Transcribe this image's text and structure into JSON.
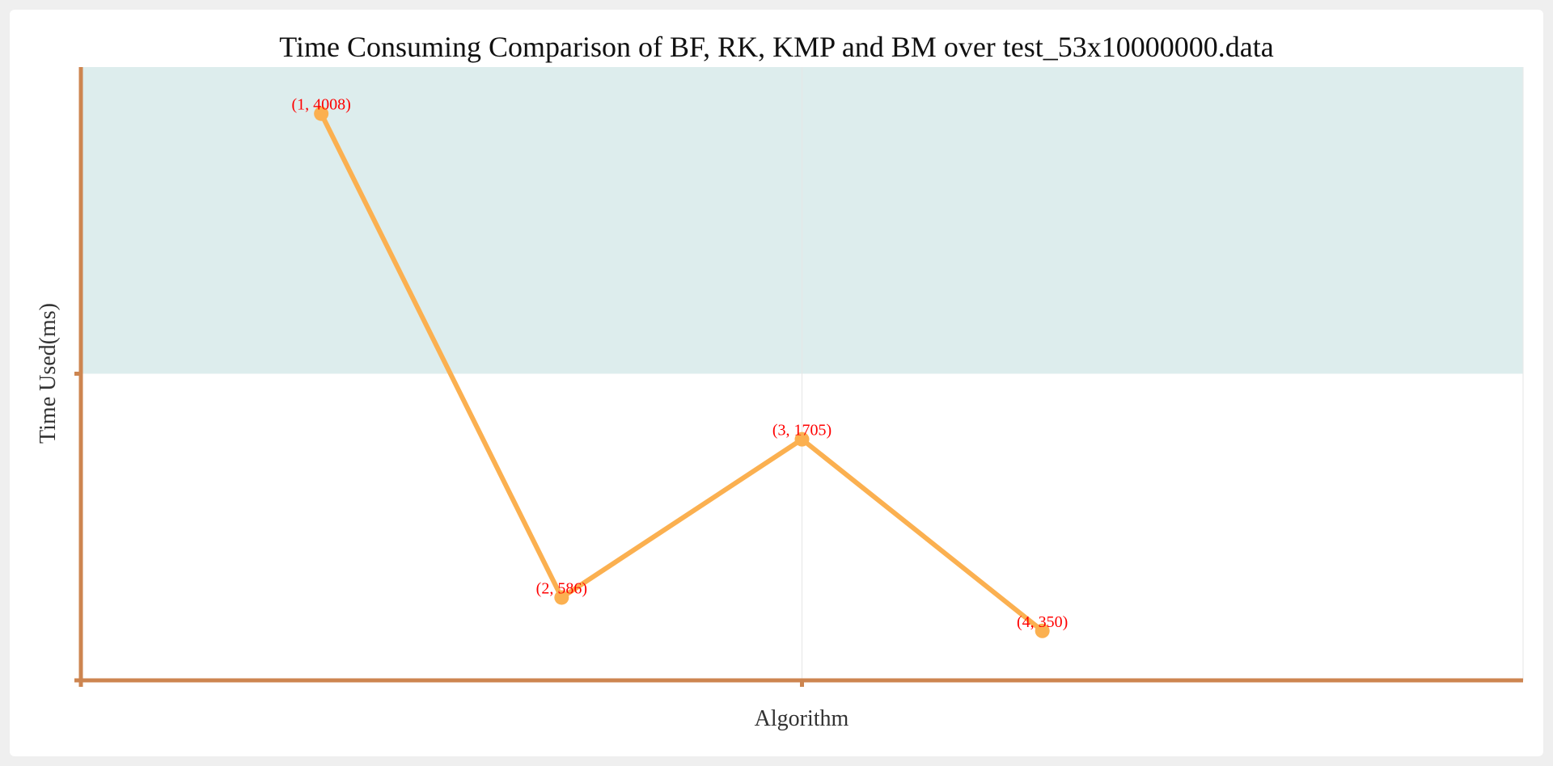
{
  "chart_data": {
    "type": "line",
    "title": "Time Consuming Comparison of BF, RK, KMP and BM over test_53x10000000.data",
    "xlabel": "Algorithm",
    "ylabel": "Time Used(ms)",
    "xlim": [
      0,
      6
    ],
    "ylim": [
      0,
      4338
    ],
    "x": [
      1,
      2,
      3,
      4
    ],
    "series": [
      {
        "values": [
          4008,
          586,
          1705,
          350
        ],
        "point_labels": [
          "(1, 4008)",
          "(2, 586)",
          "(3, 1705)",
          "(4, 350)"
        ]
      }
    ],
    "mark_area": {
      "y_from": 2169,
      "y_to": 4338
    },
    "grid": true,
    "colors": {
      "line": "#fbb050",
      "axis": "#cd8550",
      "band": "#ddeded",
      "label": "#ff0000",
      "grid": "#e6e6e6"
    }
  }
}
